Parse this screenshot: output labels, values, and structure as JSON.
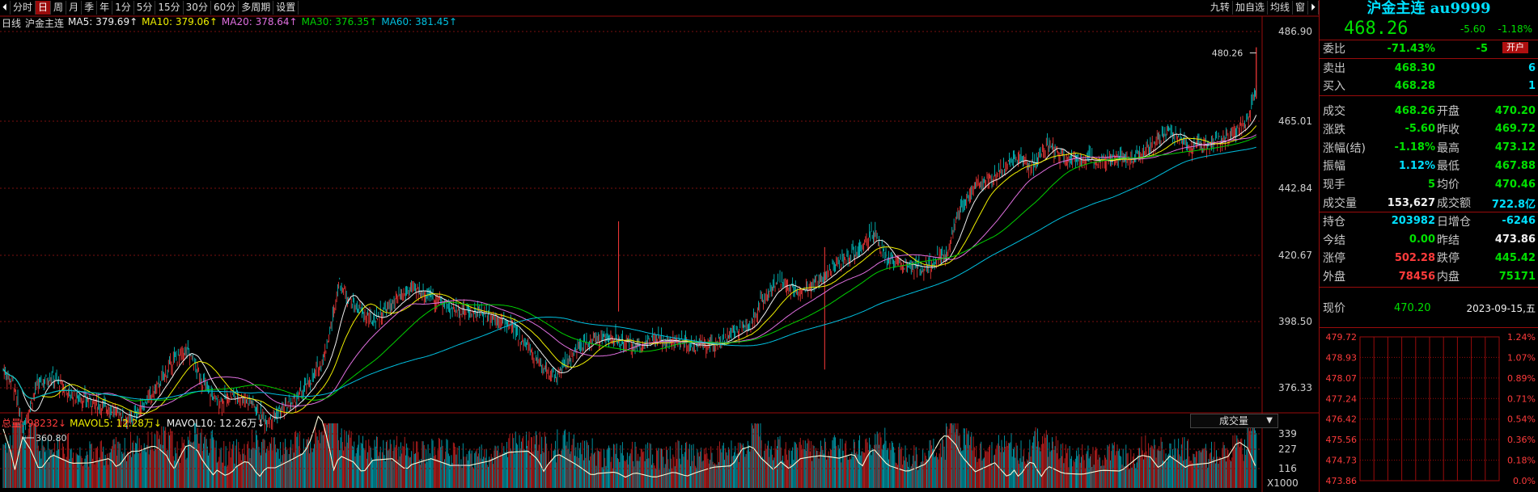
{
  "toolbar": {
    "tabs": [
      "分时",
      "日",
      "周",
      "月",
      "季",
      "年",
      "1分",
      "5分",
      "15分",
      "30分",
      "60分",
      "多周期",
      "设置"
    ],
    "active_tab": "日",
    "right_buttons": [
      "九转",
      "加自选",
      "均线",
      "窗"
    ]
  },
  "chart": {
    "period_label": "日线",
    "instrument": "沪金主连",
    "ma": [
      {
        "label": "MA5: 379.69↑",
        "color": "#f0f0f0"
      },
      {
        "label": "MA10: 379.06↑",
        "color": "#f0f000"
      },
      {
        "label": "MA20: 378.64↑",
        "color": "#e070e0"
      },
      {
        "label": "MA30: 376.35↑",
        "color": "#00d000"
      },
      {
        "label": "MA60: 381.45↑",
        "color": "#00c0e0"
      }
    ],
    "price_axis": [
      "486.90",
      "465.01",
      "442.84",
      "420.67",
      "398.50",
      "376.33"
    ],
    "high_label": "480.26",
    "low_label": "360.80"
  },
  "volume": {
    "total_label": "总量: 98232↓",
    "mavol5": "MAVOL5: 12.28万↓",
    "mavol10": "MAVOL10: 12.26万↓",
    "dropdown": "成交量",
    "axis": [
      "339",
      "227",
      "116"
    ],
    "unit": "X1000"
  },
  "panel": {
    "title": "沪金主连 au9999",
    "last": "468.26",
    "change": "-5.60",
    "change_pct": "-1.18%",
    "weibi_label": "委比",
    "weibi_pct": "-71.43%",
    "weibi_diff": "-5",
    "open_button": "开户",
    "sell_label": "卖出",
    "sell_price": "468.30",
    "sell_qty": "6",
    "buy_label": "买入",
    "buy_price": "468.28",
    "buy_qty": "1",
    "rows": [
      {
        "l1": "成交",
        "v1": "468.26",
        "c1": "green",
        "l2": "开盘",
        "v2": "470.20",
        "c2": "green"
      },
      {
        "l1": "涨跌",
        "v1": "-5.60",
        "c1": "green",
        "l2": "昨收",
        "v2": "469.72",
        "c2": "green"
      },
      {
        "l1": "涨幅(结)",
        "v1": "-1.18%",
        "c1": "green",
        "l2": "最高",
        "v2": "473.12",
        "c2": "green"
      },
      {
        "l1": "振幅",
        "v1": "1.12%",
        "c1": "cyan",
        "l2": "最低",
        "v2": "467.88",
        "c2": "green"
      },
      {
        "l1": "现手",
        "v1": "5",
        "c1": "green",
        "l2": "均价",
        "v2": "470.46",
        "c2": "green"
      },
      {
        "l1": "成交量",
        "v1": "153,627",
        "c1": "white",
        "l2": "成交额",
        "v2": "722.8亿",
        "c2": "cyan"
      },
      {
        "l1": "持仓",
        "v1": "203982",
        "c1": "cyan",
        "l2": "日增仓",
        "v2": "-6246",
        "c2": "cyan"
      },
      {
        "l1": "今结",
        "v1": "0.00",
        "c1": "green",
        "l2": "昨结",
        "v2": "473.86",
        "c2": "white"
      },
      {
        "l1": "涨停",
        "v1": "502.28",
        "c1": "red",
        "l2": "跌停",
        "v2": "445.42",
        "c2": "green"
      },
      {
        "l1": "外盘",
        "v1": "78456",
        "c1": "red",
        "l2": "内盘",
        "v2": "75171",
        "c2": "green"
      }
    ],
    "now_label": "现价",
    "now_value": "470.20",
    "date": "2023-09-15,五",
    "mini_left": [
      "479.72",
      "478.93",
      "478.07",
      "477.24",
      "476.42",
      "475.56",
      "474.73",
      "473.86"
    ],
    "mini_right": [
      "1.24%",
      "1.07%",
      "0.89%",
      "0.71%",
      "0.54%",
      "0.36%",
      "0.18%",
      "0.0%"
    ]
  }
}
